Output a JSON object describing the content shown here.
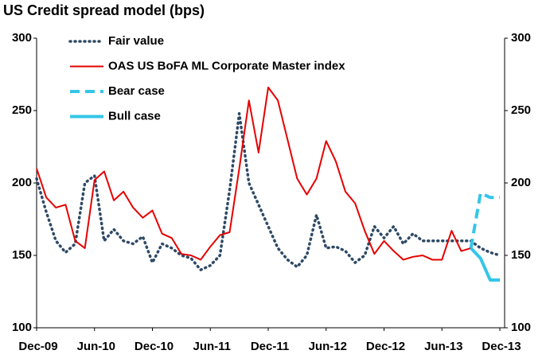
{
  "chart_data": {
    "type": "line",
    "title": "US Credit spread model (bps)",
    "categories": [
      "Dec-09",
      null,
      null,
      null,
      null,
      null,
      "Jun-10",
      null,
      null,
      null,
      null,
      null,
      "Dec-10",
      null,
      null,
      null,
      null,
      null,
      "Jun-11",
      null,
      null,
      null,
      null,
      null,
      "Dec-11",
      null,
      null,
      null,
      null,
      null,
      "Jun-12",
      null,
      null,
      null,
      null,
      null,
      "Dec-12",
      null,
      null,
      null,
      null,
      null,
      "Jun-13",
      null,
      null,
      null,
      null,
      null,
      "Dec-13"
    ],
    "series": [
      {
        "name": "Fair value",
        "color": "#2e4a66",
        "style": "dotted",
        "values": [
          203,
          180,
          160,
          152,
          158,
          200,
          205,
          160,
          168,
          160,
          158,
          163,
          145,
          158,
          155,
          150,
          148,
          140,
          143,
          150,
          195,
          248,
          200,
          185,
          170,
          155,
          147,
          142,
          150,
          178,
          155,
          156,
          153,
          145,
          150,
          170,
          162,
          170,
          158,
          165,
          160,
          160,
          160,
          160,
          160,
          160,
          155,
          152,
          150
        ]
      },
      {
        "name": "OAS US BoFA ML Corporate Master index",
        "color": "#e60000",
        "style": "solid",
        "values": [
          210,
          190,
          183,
          185,
          160,
          155,
          202,
          208,
          188,
          194,
          183,
          176,
          181,
          165,
          162,
          151,
          150,
          147,
          156,
          164,
          166,
          210,
          257,
          221,
          266,
          257,
          230,
          203,
          192,
          203,
          229,
          215,
          194,
          186,
          167,
          151,
          160,
          153,
          147,
          149,
          150,
          147,
          147,
          167,
          153,
          155,
          null,
          null,
          null
        ]
      },
      {
        "name": "Bear case",
        "color": "#33c6e8",
        "style": "dashed",
        "values": [
          null,
          null,
          null,
          null,
          null,
          null,
          null,
          null,
          null,
          null,
          null,
          null,
          null,
          null,
          null,
          null,
          null,
          null,
          null,
          null,
          null,
          null,
          null,
          null,
          null,
          null,
          null,
          null,
          null,
          null,
          null,
          null,
          null,
          null,
          null,
          null,
          null,
          null,
          null,
          null,
          null,
          null,
          null,
          null,
          null,
          155,
          193,
          190,
          190
        ]
      },
      {
        "name": "Bull case",
        "color": "#33c6e8",
        "style": "solid",
        "values": [
          null,
          null,
          null,
          null,
          null,
          null,
          null,
          null,
          null,
          null,
          null,
          null,
          null,
          null,
          null,
          null,
          null,
          null,
          null,
          null,
          null,
          null,
          null,
          null,
          null,
          null,
          null,
          null,
          null,
          null,
          null,
          null,
          null,
          null,
          null,
          null,
          null,
          null,
          null,
          null,
          null,
          null,
          null,
          null,
          null,
          155,
          148,
          133,
          133
        ]
      }
    ],
    "ylim": [
      100,
      300
    ],
    "yticks": [
      100,
      150,
      200,
      250,
      300
    ],
    "y2lim": [
      100,
      300
    ],
    "y2ticks": [
      100,
      150,
      200,
      250,
      300
    ],
    "legend": "upper left"
  }
}
